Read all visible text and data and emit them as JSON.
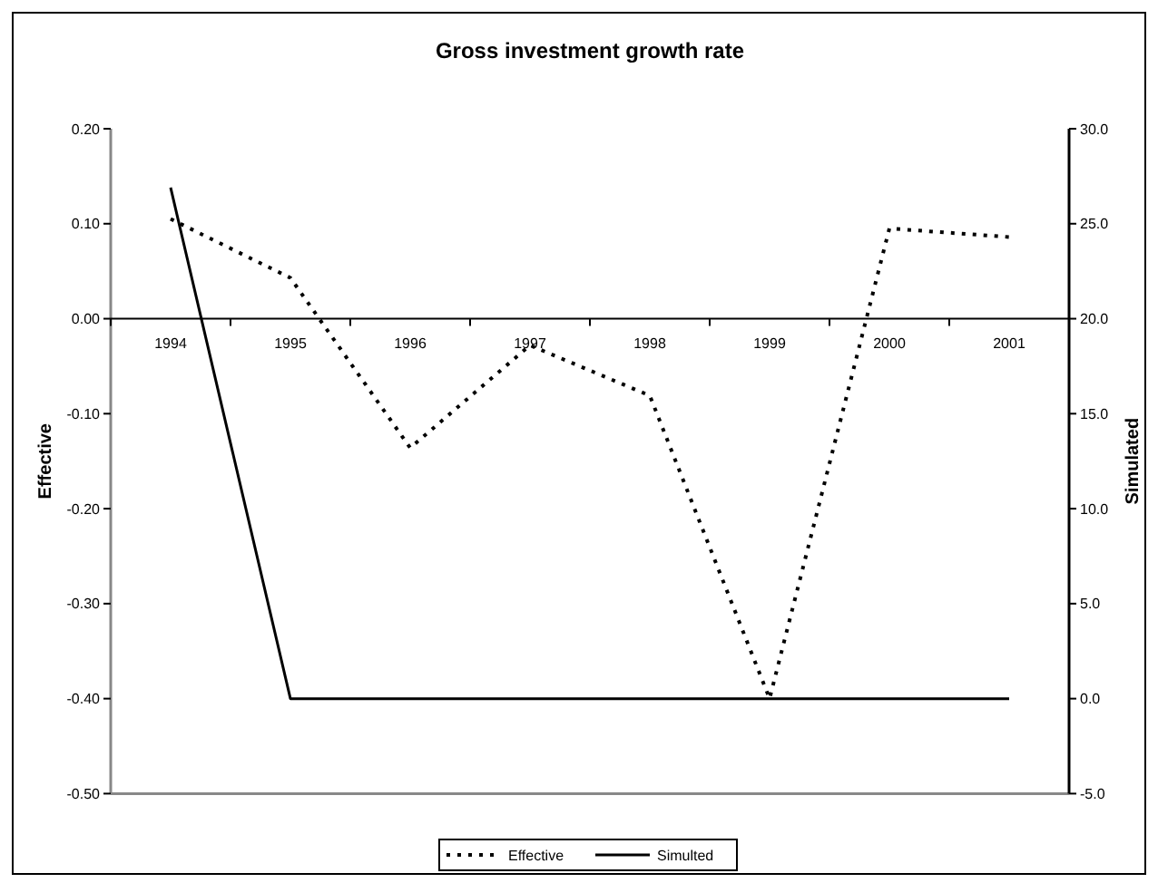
{
  "chart_data": {
    "type": "line",
    "title": "Gross investment growth rate",
    "ylabel": "Effective",
    "y2label": "Simulated",
    "categories": [
      "1994",
      "1995",
      "1996",
      "1997",
      "1998",
      "1999",
      "2000",
      "2001"
    ],
    "series": [
      {
        "name": "Effective",
        "color": "#000000",
        "line_style": "dotted",
        "values": [
          0.105,
          0.043,
          -0.136,
          -0.028,
          -0.081,
          -0.4,
          0.095,
          0.086
        ]
      },
      {
        "name": "Simulted",
        "color": "#000000",
        "line_style": "solid",
        "axis": "y2",
        "values": [
          26.9,
          0,
          0,
          0,
          0,
          0,
          0,
          0
        ]
      }
    ],
    "ylim": [
      -0.5,
      0.2
    ],
    "yticks": [
      {
        "value": 0.2,
        "label": "0.20"
      },
      {
        "value": 0.1,
        "label": "0.10"
      },
      {
        "value": 0,
        "label": "0.00"
      },
      {
        "value": -0.1,
        "label": "-0.10"
      },
      {
        "value": -0.2,
        "label": "-0.20"
      },
      {
        "value": -0.3,
        "label": "-0.30"
      },
      {
        "value": -0.4,
        "label": "-0.40"
      },
      {
        "value": -0.5,
        "label": "-0.50"
      }
    ],
    "y2lim": [
      -5,
      30
    ],
    "y2ticks": [
      {
        "value": 30,
        "label": "30.0"
      },
      {
        "value": 25,
        "label": "25.0"
      },
      {
        "value": 20,
        "label": "20.0"
      },
      {
        "value": 15,
        "label": "15.0"
      },
      {
        "value": 10,
        "label": "10.0"
      },
      {
        "value": 5,
        "label": "5.0"
      },
      {
        "value": 0,
        "label": "0.0"
      },
      {
        "value": -5,
        "label": "-5.0"
      }
    ],
    "grid": false,
    "legend": "bottom",
    "marker": "none"
  }
}
